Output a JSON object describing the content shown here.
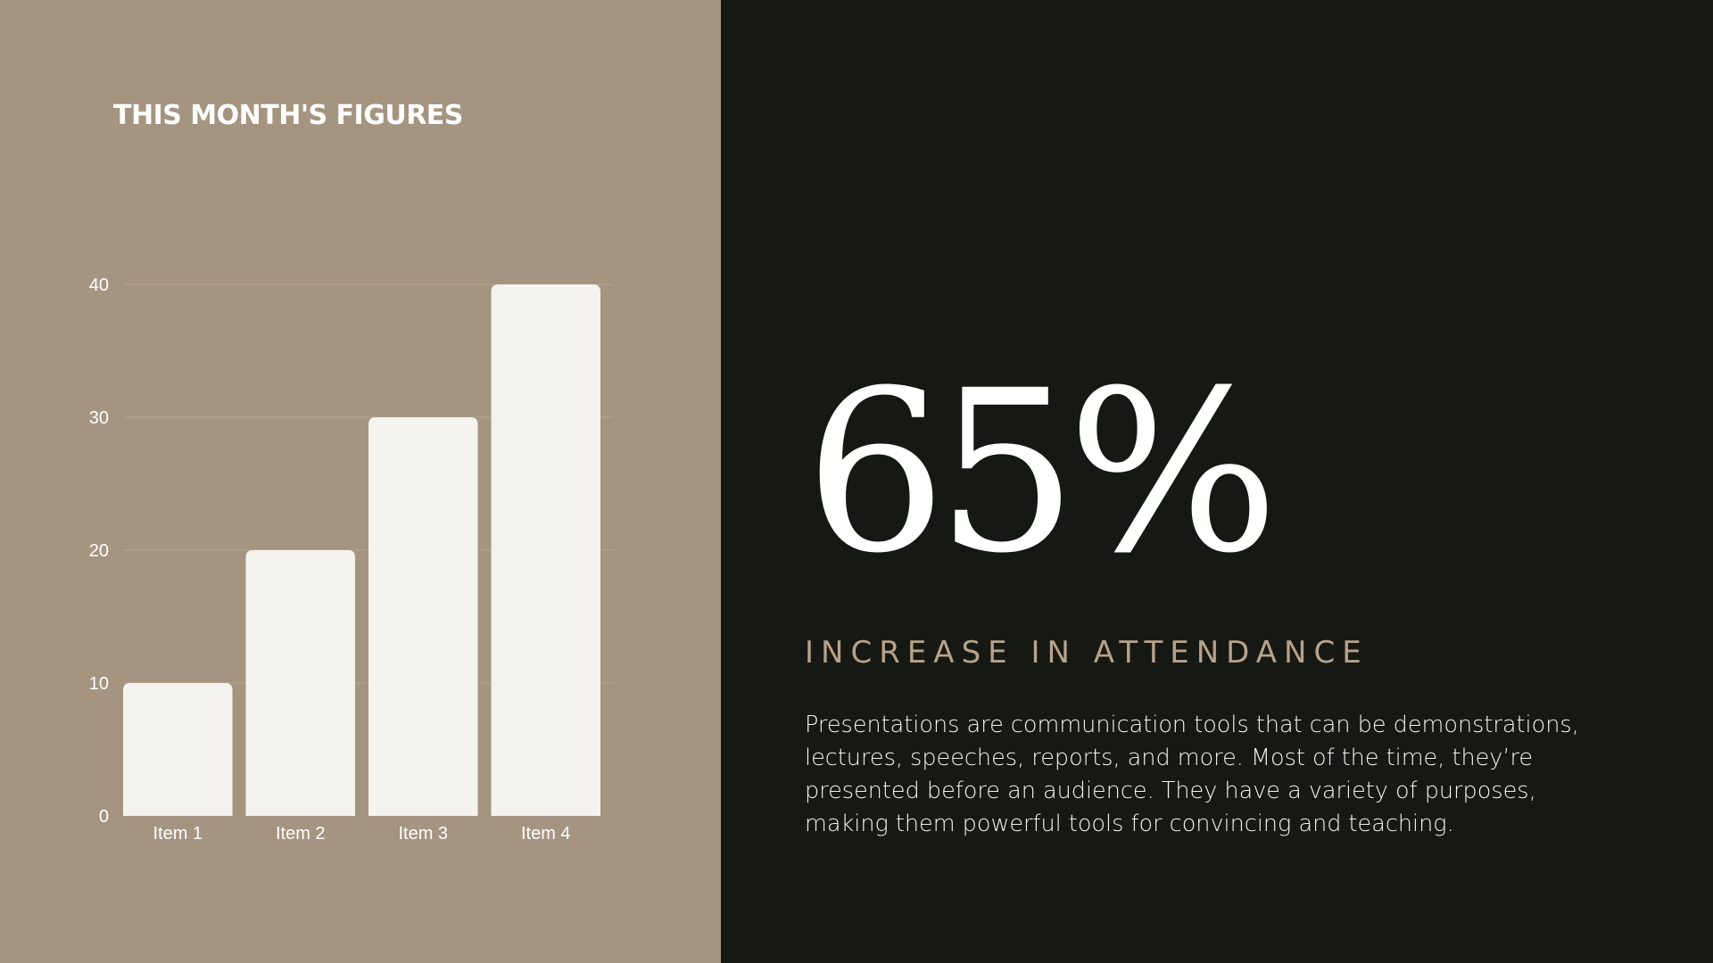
{
  "slide": {
    "title": "THIS MONTH'S FIGURES",
    "stat_value": "65%",
    "stat_label": "INCREASE IN ATTENDANCE",
    "description": "Presentations are communication tools that can be demonstrations, lectures, speeches, reports, and more. Most of the time, they’re presented before an audience. They have a variety of purposes, making them powerful tools for convincing and teaching."
  },
  "colors": {
    "left_background": "#a59480",
    "right_background": "#161814",
    "bar_fill": "#f4f3ee",
    "accent_text": "#b7a38a"
  },
  "chart_data": {
    "type": "bar",
    "categories": [
      "Item 1",
      "Item 2",
      "Item 3",
      "Item 4"
    ],
    "values": [
      10,
      20,
      30,
      40
    ],
    "ylim": [
      0,
      40
    ],
    "yticks": [
      0,
      10,
      20,
      30,
      40
    ],
    "grid": true,
    "legend": "none",
    "title": "",
    "xlabel": "",
    "ylabel": ""
  }
}
